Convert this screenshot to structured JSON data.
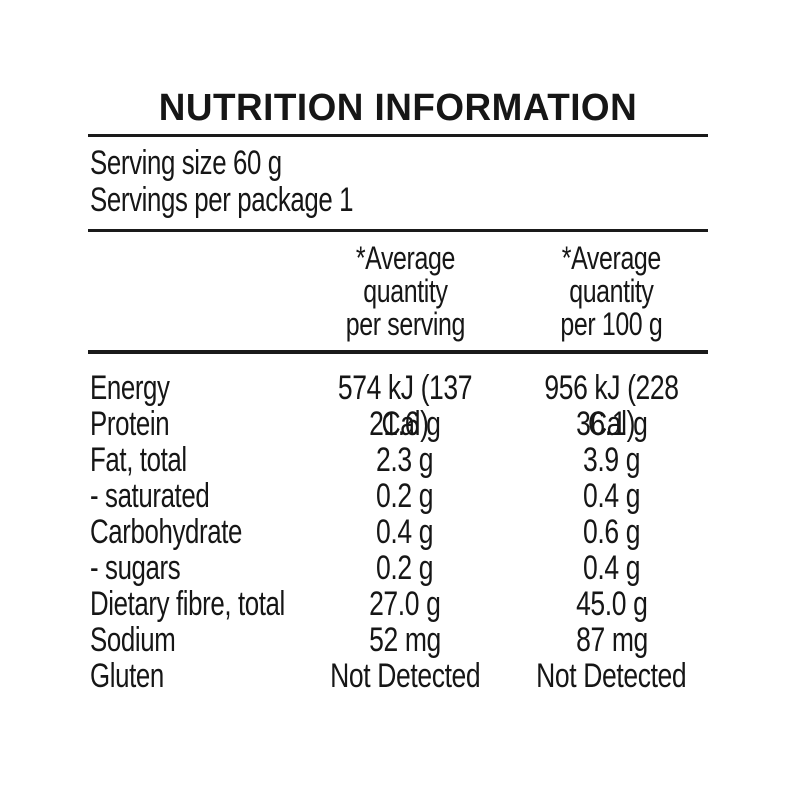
{
  "title": "NUTRITION INFORMATION",
  "serving_info": {
    "serving_size": "Serving size 60 g",
    "servings_per_package": "Servings per package 1"
  },
  "column_headers": {
    "per_serving": "*Average\nquantity\nper serving",
    "per_100g": "*Average\nquantity\nper 100 g"
  },
  "rows": [
    {
      "nutrient": "Energy",
      "per_serving": "574 kJ (137 Cal)",
      "per_100g": "956 kJ (228 Cal)"
    },
    {
      "nutrient": "Protein",
      "per_serving": "21.6 g",
      "per_100g": "36.1 g"
    },
    {
      "nutrient": "Fat, total",
      "per_serving": "2.3 g",
      "per_100g": "3.9 g"
    },
    {
      "nutrient": "- saturated",
      "per_serving": "0.2 g",
      "per_100g": "0.4 g"
    },
    {
      "nutrient": "Carbohydrate",
      "per_serving": "0.4 g",
      "per_100g": "0.6 g"
    },
    {
      "nutrient": "- sugars",
      "per_serving": "0.2 g",
      "per_100g": "0.4 g"
    },
    {
      "nutrient": "Dietary fibre, total",
      "per_serving": "27.0 g",
      "per_100g": "45.0 g"
    },
    {
      "nutrient": "Sodium",
      "per_serving": "52 mg",
      "per_100g": "87 mg"
    },
    {
      "nutrient": "Gluten",
      "per_serving": "Not Detected",
      "per_100g": "Not Detected"
    }
  ],
  "colors": {
    "text": "#161616",
    "rule": "#1a1a1a",
    "background": "#ffffff"
  }
}
